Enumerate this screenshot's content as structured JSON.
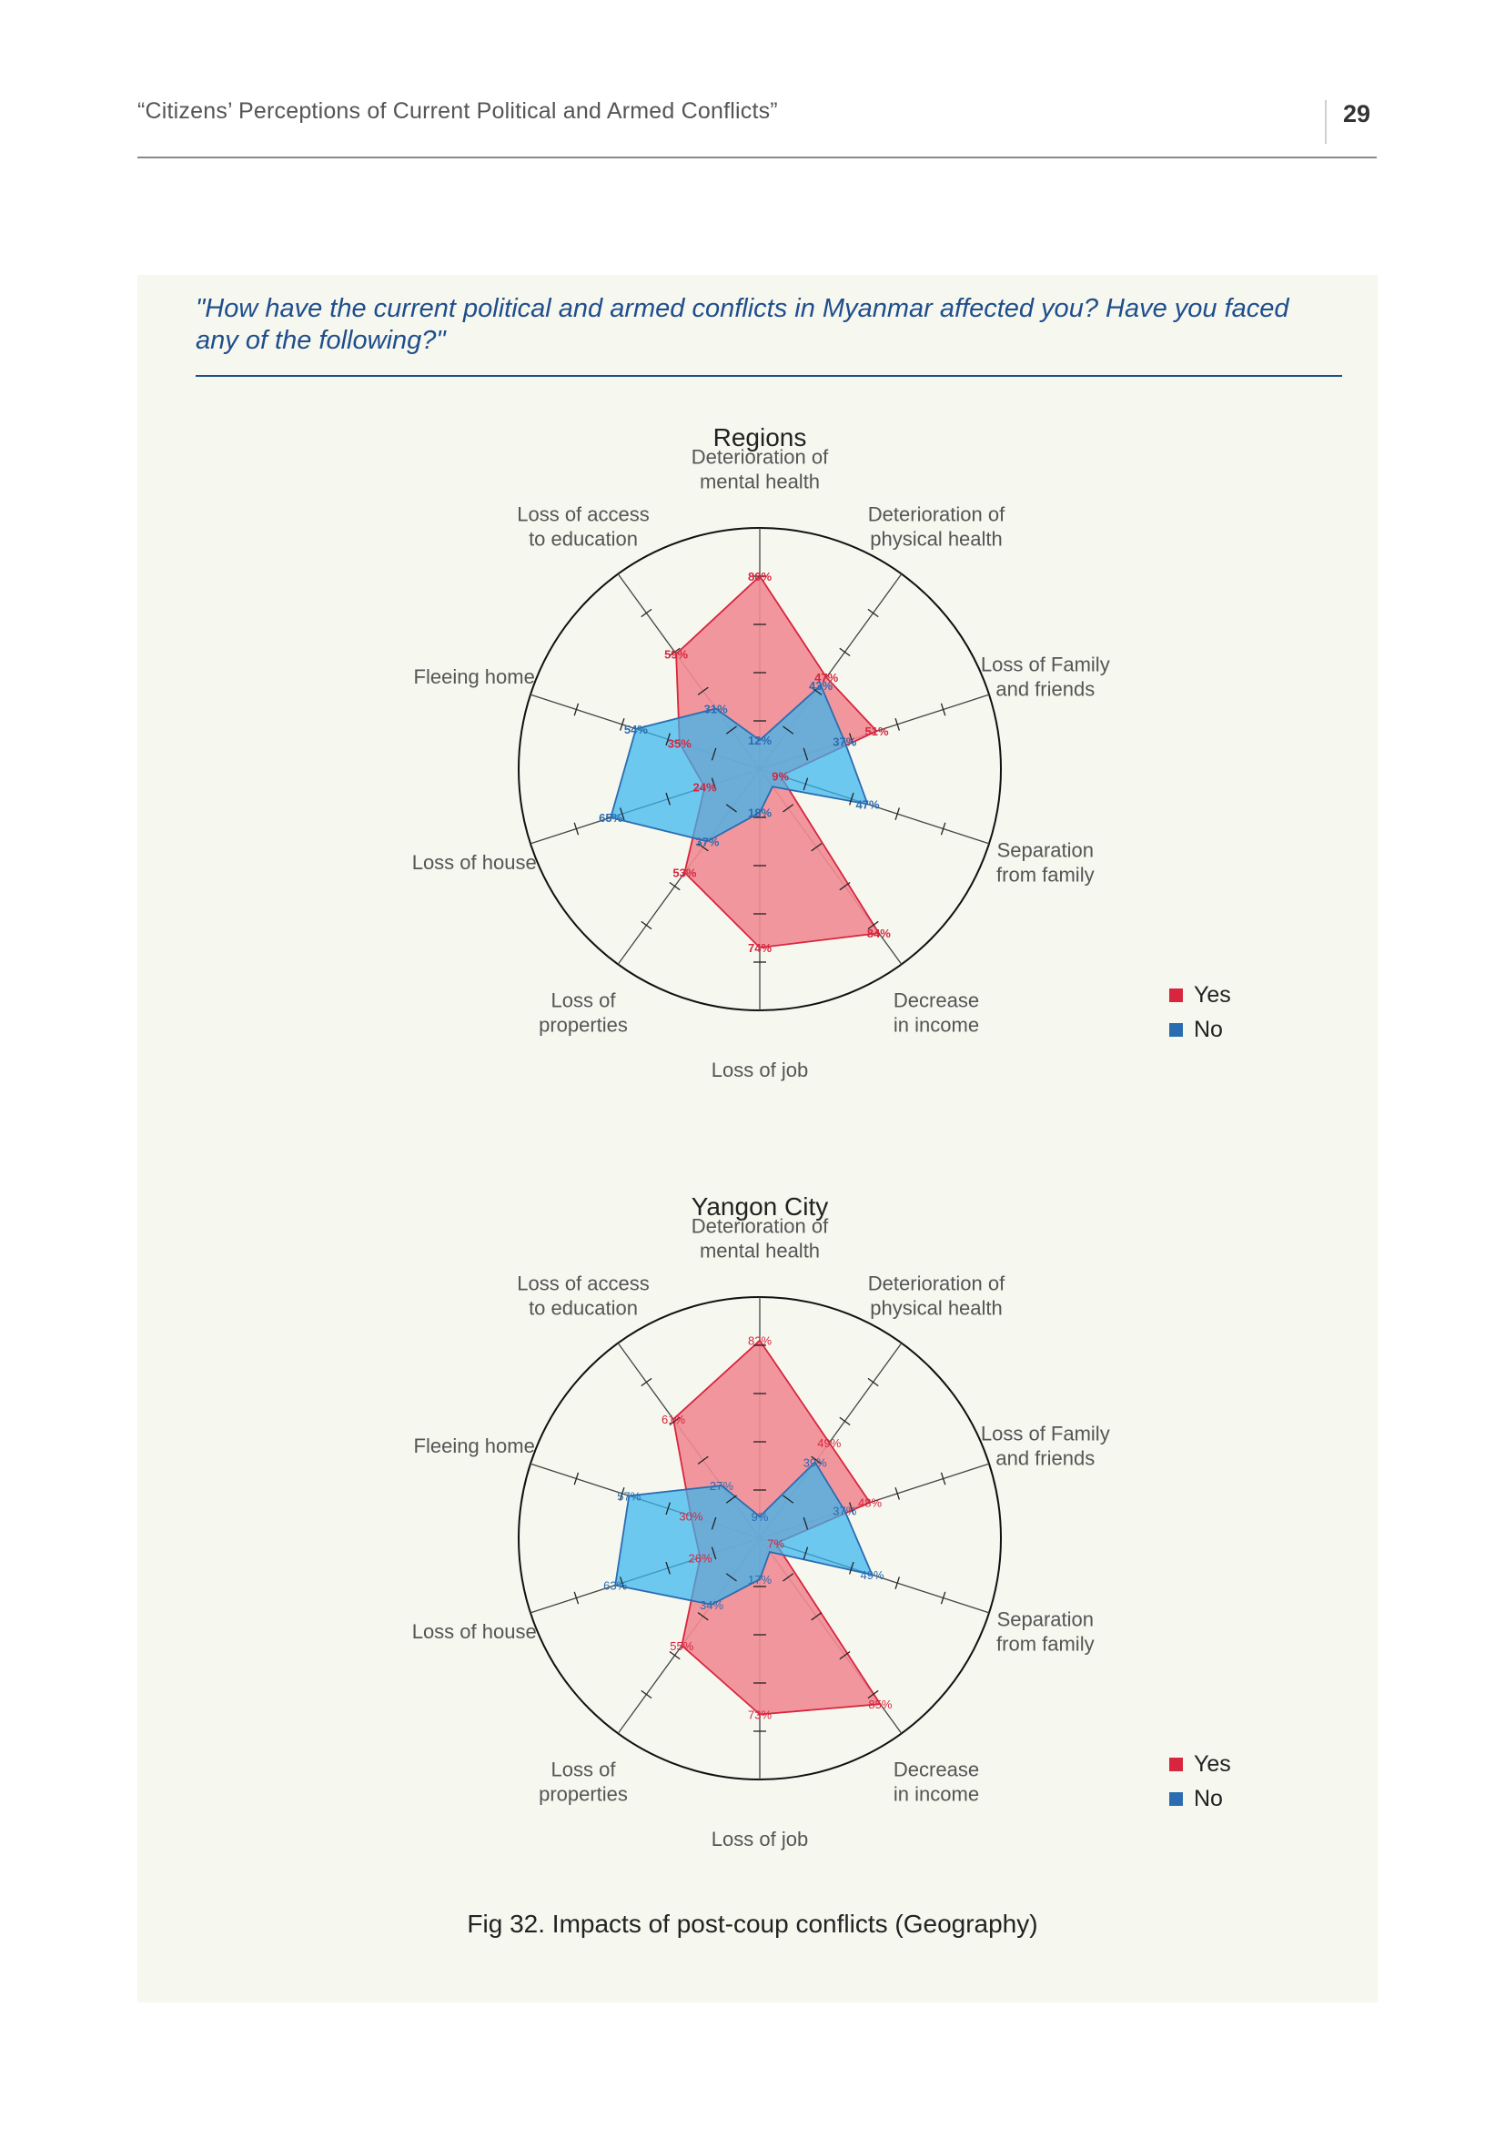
{
  "header": {
    "title": "“Citizens’ Perceptions of Current Political and Armed Conflicts”",
    "page_number": "29"
  },
  "question": "\"How have the current political and armed conflicts in Myanmar affected you? Have you faced any of the following?\"",
  "caption": "Fig 32. Impacts of post-coup conflicts (Geography)",
  "colors": {
    "yes": "#d7263d",
    "no": "#2b6cb0",
    "yes_fill": "#f28b95",
    "no_fill": "#38b6ee",
    "question": "#1f4e8c"
  },
  "chart_data": [
    {
      "type": "radar",
      "title": "Regions",
      "categories": [
        [
          "Deterioration of",
          "mental health"
        ],
        [
          "Deterioration of",
          "physical health"
        ],
        [
          "Loss of Family",
          "and friends"
        ],
        [
          "Separation",
          "from family"
        ],
        [
          "Decrease",
          "in income"
        ],
        [
          "Loss of job"
        ],
        [
          "Loss of",
          "properties"
        ],
        [
          "Loss of house"
        ],
        [
          "Fleeing home"
        ],
        [
          "Loss of access",
          "to education"
        ]
      ],
      "series": [
        {
          "name": "Yes",
          "values": [
            80,
            47,
            51,
            9,
            84,
            74,
            53,
            24,
            35,
            59
          ],
          "labels": [
            "80%",
            "47%",
            "51%",
            "9%",
            "84%",
            "74%",
            "53%",
            "24%",
            "35%",
            "59%"
          ]
        },
        {
          "name": "No",
          "values": [
            12,
            43,
            37,
            47,
            9,
            18,
            37,
            65,
            54,
            31
          ],
          "labels": [
            "12%",
            "43%",
            "37%",
            "47%",
            "",
            "18%",
            "37%",
            "65%",
            "54%",
            "31%"
          ]
        }
      ],
      "rlim": [
        0,
        100
      ],
      "ticks": [
        20,
        40,
        60,
        80
      ],
      "legend": "right"
    },
    {
      "type": "radar",
      "title": "Yangon City",
      "categories": [
        [
          "Deterioration of",
          "mental health"
        ],
        [
          "Deterioration of",
          "physical health"
        ],
        [
          "Loss of Family",
          "and friends"
        ],
        [
          "Separation",
          "from family"
        ],
        [
          "Decrease",
          "in income"
        ],
        [
          "Loss of job"
        ],
        [
          "Loss of",
          "properties"
        ],
        [
          "Loss of house"
        ],
        [
          "Fleeing home"
        ],
        [
          "Loss of access",
          "to education"
        ]
      ],
      "series": [
        {
          "name": "Yes",
          "values": [
            82,
            49,
            48,
            7,
            85,
            73,
            55,
            26,
            30,
            61
          ],
          "labels": [
            "82%",
            "49%",
            "48%",
            "7%",
            "85%",
            "73%",
            "55%",
            "26%",
            "30%",
            "61%"
          ]
        },
        {
          "name": "No",
          "values": [
            9,
            39,
            37,
            49,
            7,
            17,
            34,
            63,
            57,
            27
          ],
          "labels": [
            "9%",
            "39%",
            "37%",
            "49%",
            "",
            "17%",
            "34%",
            "63%",
            "57%",
            "27%"
          ]
        }
      ],
      "rlim": [
        0,
        100
      ],
      "ticks": [
        20,
        40,
        60,
        80
      ],
      "legend": "right"
    }
  ]
}
